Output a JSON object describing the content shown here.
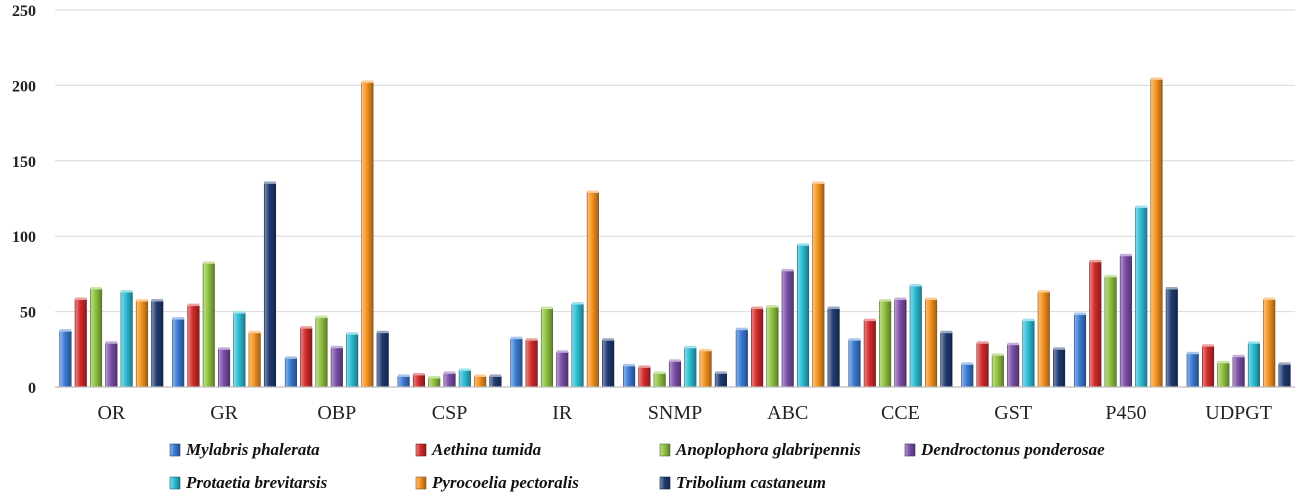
{
  "chart_data": {
    "type": "bar",
    "categories": [
      "OR",
      "GR",
      "OBP",
      "CSP",
      "IR",
      "SNMP",
      "ABC",
      "CCE",
      "GST",
      "P450",
      "UDPGT"
    ],
    "ylim": [
      0,
      250
    ],
    "yticks": [
      0,
      50,
      100,
      150,
      200,
      250
    ],
    "grid": true,
    "legend_position": "bottom",
    "series": [
      {
        "name": "Mylabris phalerata",
        "color": "#3a7bd5",
        "values": [
          37,
          45,
          19,
          7,
          32,
          14,
          38,
          31,
          15,
          48,
          22
        ]
      },
      {
        "name": "Aethina tumida",
        "color": "#d42a2a",
        "values": [
          58,
          54,
          39,
          8,
          31,
          13,
          52,
          44,
          29,
          83,
          27
        ]
      },
      {
        "name": "Anoplophora glabripennis",
        "color": "#8fc23f",
        "values": [
          65,
          82,
          46,
          6,
          52,
          9,
          53,
          57,
          21,
          73,
          16
        ]
      },
      {
        "name": "Dendroctonus ponderosae",
        "color": "#7b4ea8",
        "values": [
          29,
          25,
          26,
          9,
          23,
          17,
          77,
          58,
          28,
          87,
          20
        ]
      },
      {
        "name": "Protaetia brevitarsis",
        "color": "#2bbcd4",
        "values": [
          63,
          49,
          35,
          11,
          55,
          26,
          94,
          67,
          44,
          119,
          29
        ]
      },
      {
        "name": "Pyrocoelia pectoralis",
        "color": "#f5921e",
        "values": [
          57,
          36,
          202,
          7,
          129,
          24,
          135,
          58,
          63,
          204,
          58
        ]
      },
      {
        "name": "Tribolium castaneum",
        "color": "#1f3b73",
        "values": [
          57,
          135,
          36,
          7,
          31,
          9,
          52,
          36,
          25,
          65,
          15
        ]
      }
    ]
  }
}
